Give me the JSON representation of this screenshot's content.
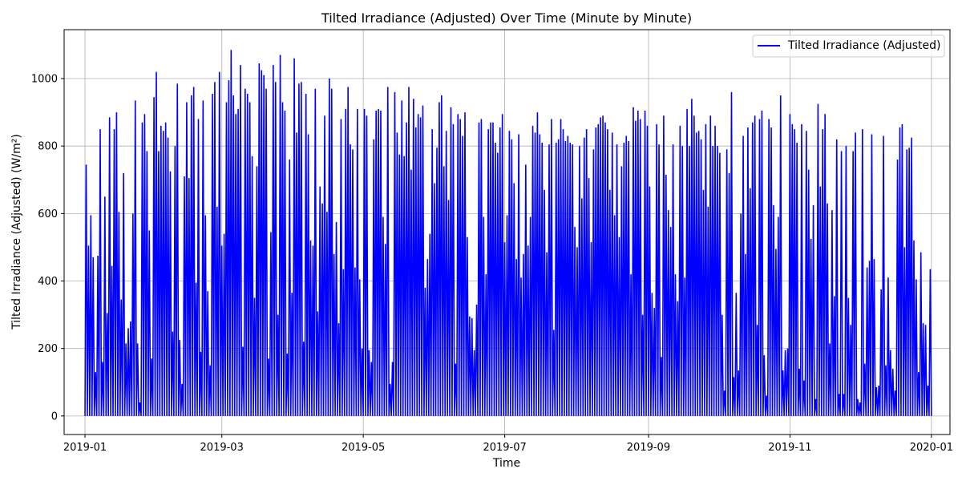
{
  "chart_data": {
    "type": "line",
    "title": "Tilted Irradiance (Adjusted) Over Time (Minute by Minute)",
    "xlabel": "Time",
    "ylabel": "Tilted Irradiance (Adjusted) (W/m²)",
    "grid": true,
    "legend_position": "top-right",
    "x_range": [
      "2018-12-23",
      "2020-01-09"
    ],
    "ylim": [
      -55,
      1145
    ],
    "x_ticks": [
      "2019-01",
      "2019-03",
      "2019-05",
      "2019-07",
      "2019-09",
      "2019-11",
      "2020-01"
    ],
    "y_ticks": [
      0,
      200,
      400,
      600,
      800,
      1000
    ],
    "series": [
      {
        "name": "Tilted Irradiance (Adjusted)",
        "color": "#0000ff",
        "x_start": "2019-01-01",
        "x_end": "2020-01-01",
        "sampling": "daily peaks",
        "y": [
          745,
          505,
          595,
          470,
          130,
          475,
          850,
          160,
          650,
          305,
          885,
          445,
          850,
          900,
          605,
          345,
          720,
          215,
          260,
          280,
          600,
          935,
          215,
          40,
          870,
          895,
          785,
          550,
          170,
          945,
          1020,
          785,
          860,
          845,
          870,
          825,
          725,
          250,
          800,
          985,
          225,
          95,
          710,
          930,
          705,
          950,
          975,
          395,
          880,
          190,
          935,
          595,
          370,
          150,
          955,
          990,
          620,
          1020,
          505,
          540,
          930,
          995,
          1085,
          950,
          895,
          910,
          1040,
          205,
          970,
          955,
          930,
          770,
          350,
          740,
          1045,
          1025,
          1010,
          970,
          170,
          545,
          1040,
          990,
          300,
          1070,
          930,
          905,
          185,
          760,
          365,
          1060,
          840,
          985,
          990,
          220,
          955,
          835,
          520,
          505,
          970,
          310,
          680,
          630,
          890,
          605,
          1000,
          970,
          480,
          575,
          275,
          880,
          435,
          910,
          975,
          805,
          790,
          440,
          910,
          405,
          200,
          910,
          890,
          195,
          160,
          820,
          905,
          910,
          905,
          590,
          510,
          975,
          95,
          160,
          960,
          840,
          775,
          935,
          770,
          870,
          975,
          730,
          940,
          855,
          895,
          885,
          920,
          380,
          465,
          540,
          850,
          690,
          795,
          930,
          950,
          740,
          845,
          640,
          915,
          865,
          155,
          895,
          880,
          830,
          900,
          530,
          295,
          290,
          195,
          330,
          870,
          880,
          590,
          420,
          850,
          870,
          870,
          810,
          780,
          855,
          895,
          515,
          595,
          845,
          820,
          690,
          465,
          835,
          410,
          480,
          745,
          505,
          590,
          860,
          840,
          900,
          835,
          810,
          670,
          485,
          805,
          880,
          255,
          810,
          820,
          880,
          850,
          815,
          830,
          810,
          805,
          560,
          500,
          800,
          645,
          825,
          850,
          705,
          515,
          790,
          855,
          865,
          885,
          890,
          870,
          850,
          670,
          840,
          595,
          805,
          530,
          740,
          810,
          830,
          815,
          420,
          915,
          875,
          905,
          880,
          300,
          905,
          860,
          680,
          365,
          320,
          865,
          805,
          175,
          890,
          715,
          610,
          560,
          805,
          420,
          340,
          860,
          800,
          410,
          910,
          800,
          940,
          890,
          840,
          845,
          820,
          670,
          865,
          620,
          890,
          800,
          860,
          800,
          780,
          300,
          75,
          790,
          720,
          960,
          115,
          365,
          135,
          600,
          830,
          480,
          855,
          675,
          870,
          890,
          270,
          880,
          905,
          180,
          60,
          880,
          855,
          625,
          495,
          590,
          950,
          135,
          195,
          200,
          895,
          865,
          850,
          810,
          140,
          865,
          105,
          845,
          730,
          525,
          625,
          50,
          925,
          680,
          850,
          895,
          630,
          215,
          610,
          355,
          820,
          65,
          785,
          65,
          800,
          350,
          270,
          785,
          840,
          50,
          40,
          850,
          155,
          440,
          460,
          835,
          465,
          85,
          90,
          375,
          830,
          150,
          410,
          195,
          140,
          75,
          760,
          855,
          865,
          500,
          790,
          795,
          825,
          520,
          405,
          130,
          485,
          275,
          270,
          90,
          435
        ]
      }
    ]
  }
}
